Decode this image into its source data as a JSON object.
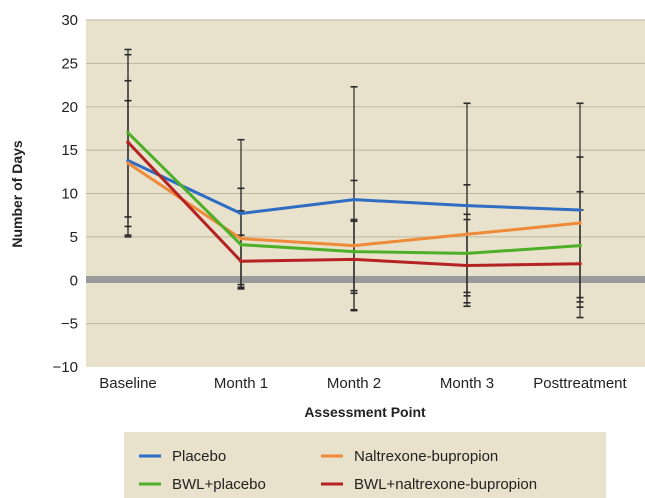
{
  "chart_data": {
    "type": "line",
    "title": "",
    "xlabel": "Assessment Point",
    "ylabel": "Number of Days",
    "categories": [
      "Baseline",
      "Month 1",
      "Month 2",
      "Month 3",
      "Posttreatment"
    ],
    "ylim": [
      -10,
      30
    ],
    "yticks": [
      30,
      25,
      20,
      15,
      10,
      5,
      0,
      -5,
      -10
    ],
    "ytick_labels": [
      "30",
      "25",
      "20",
      "15",
      "10",
      "5",
      "0",
      "−5",
      "−10"
    ],
    "grid": true,
    "background_color": "#e8e2cc",
    "zero_line_color": "#9a9a9a",
    "error_bar_color": "#2a2a2a",
    "legend_position": "bottom",
    "series": [
      {
        "name": "Placebo",
        "color": "#2f6dc4",
        "values": [
          13.8,
          7.7,
          9.3,
          8.6,
          8.1
        ],
        "error": [
          [
            6.2,
            23.0
          ],
          [
            -0.8,
            16.2
          ],
          [
            -1.2,
            22.3
          ],
          [
            -1.8,
            20.4
          ],
          [
            -2.5,
            20.4
          ]
        ]
      },
      {
        "name": "Naltrexone-bupropion",
        "color": "#ef8a3a",
        "values": [
          13.5,
          4.8,
          4.0,
          5.3,
          6.6
        ],
        "error": [
          [
            5.2,
            26.6
          ],
          [
            -0.9,
            10.6
          ],
          [
            -3.5,
            11.5
          ],
          [
            -2.6,
            11.0
          ],
          [
            -2.0,
            14.2
          ]
        ]
      },
      {
        "name": "BWL+placebo",
        "color": "#4caf26",
        "values": [
          17.0,
          4.1,
          3.3,
          3.1,
          4.0
        ],
        "error": [
          [
            7.3,
            26.0
          ],
          [
            -0.5,
            8.0
          ],
          [
            -1.5,
            7.0
          ],
          [
            -1.4,
            7.6
          ],
          [
            -3.1,
            10.2
          ]
        ]
      },
      {
        "name": "BWL+naltrexone-bupropion",
        "color": "#b52222",
        "values": [
          15.9,
          2.2,
          2.4,
          1.7,
          1.9
        ],
        "error": [
          [
            5.0,
            20.7
          ],
          [
            -1.0,
            5.2
          ],
          [
            -3.4,
            6.8
          ],
          [
            -3.0,
            7.0
          ],
          [
            -4.3,
            8.1
          ]
        ]
      }
    ]
  }
}
